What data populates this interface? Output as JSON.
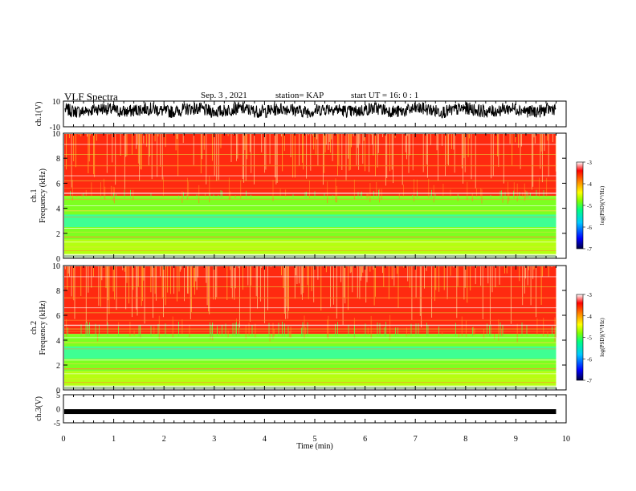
{
  "header": {
    "title": "VLF Spectra",
    "date": "Sep. 3 , 2021",
    "station": "station= KAP",
    "start": "start UT =  16: 0 : 1"
  },
  "chart_data": [
    {
      "id": "ch1-waveform",
      "type": "line",
      "ylabel": "ch.1(V)",
      "ylim": [
        -10,
        10
      ],
      "yticks": [
        "10",
        "-10"
      ],
      "x_range_min": [
        0,
        9.8
      ],
      "approx_level_V": 3,
      "approx_jitter_V": 5,
      "color": "#000000"
    },
    {
      "id": "ch1-spectrogram",
      "type": "heatmap",
      "ylabel_top": "ch.1",
      "ylabel": "Frequency (kHz)",
      "ylim": [
        0,
        10
      ],
      "yticks": [
        "0",
        "2",
        "4",
        "6",
        "8",
        "10"
      ],
      "x_range_min": [
        0,
        9.8
      ],
      "band_low_kHz": [
        1.5,
        5.0
      ],
      "colorbar": {
        "label": "log(PSD)(V²/Hz)",
        "range": [
          -7,
          -3
        ],
        "ticks": [
          "-3",
          "-4",
          "-5",
          "-6",
          "-7"
        ]
      }
    },
    {
      "id": "ch2-spectrogram",
      "type": "heatmap",
      "ylabel_top": "ch.2",
      "ylabel": "Frequency (kHz)",
      "ylim": [
        0,
        10
      ],
      "yticks": [
        "0",
        "2",
        "4",
        "6",
        "8",
        "10"
      ],
      "x_range_min": [
        0,
        9.8
      ],
      "band_low_kHz": [
        1.5,
        4.5
      ],
      "colorbar": {
        "label": "log(PSD)(V²/Hz)",
        "range": [
          -7,
          -3
        ],
        "ticks": [
          "-3",
          "-4",
          "-5",
          "-6",
          "-7"
        ]
      }
    },
    {
      "id": "ch3-waveform",
      "type": "line",
      "ylabel": "ch.3(V)",
      "ylim": [
        -5,
        5
      ],
      "yticks": [
        "5",
        "0",
        "-5"
      ],
      "x_range_min": [
        0,
        9.8
      ],
      "approx_level_V": 0,
      "color": "#000000",
      "xlabel": "Time (min)",
      "xlim": [
        0,
        10
      ],
      "xticks": [
        "0",
        "1",
        "2",
        "3",
        "4",
        "5",
        "6",
        "7",
        "8",
        "9",
        "10"
      ]
    }
  ],
  "colors": {
    "colormap": [
      "#000040",
      "#0000ff",
      "#00c8ff",
      "#00ff80",
      "#80ff00",
      "#ffff00",
      "#ff8000",
      "#ff0000",
      "#ffffff"
    ],
    "trace": "#000000"
  }
}
